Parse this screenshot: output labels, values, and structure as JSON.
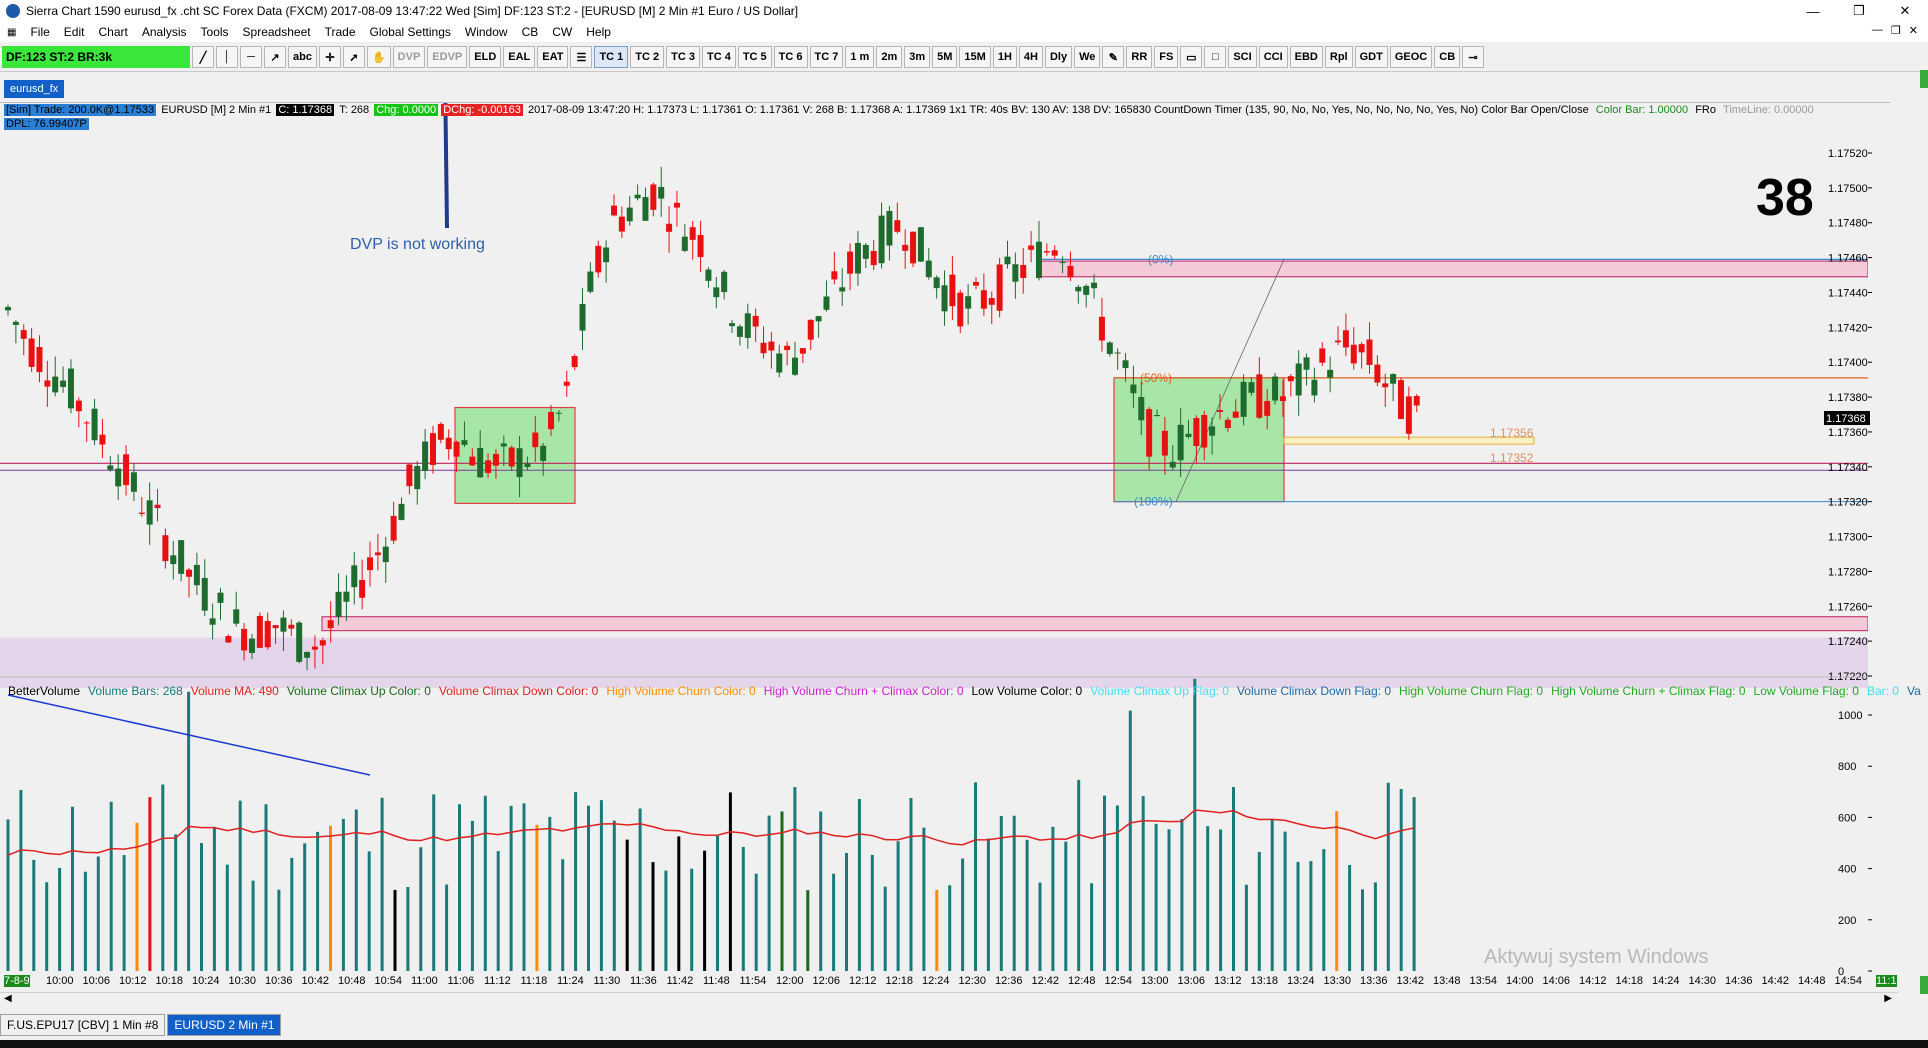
{
  "window": {
    "title": "Sierra Chart 1590 eurusd_fx .cht  SC Forex Data (FXCM) 2017-08-09 13:47:22 Wed [Sim]  DF:123  ST:2 - [EURUSD [M]  2 Min  #1  Euro / US Dollar]",
    "min": "—",
    "restore": "❐",
    "close": "✕"
  },
  "menu": [
    "File",
    "Edit",
    "Chart",
    "Analysis",
    "Tools",
    "Spreadsheet",
    "Trade",
    "Global Settings",
    "Window",
    "CB",
    "CW",
    "Help"
  ],
  "mdi_controls": [
    "—",
    "❐",
    "✕"
  ],
  "toolbar": {
    "status": "DF:123  ST:2  BR:3k",
    "buttons": [
      "DVP",
      "EDVP",
      "ELD",
      "EAL",
      "EAT",
      "TC 1",
      "TC 2",
      "TC 3",
      "TC 4",
      "TC 5",
      "TC 6",
      "TC 7",
      "1 m",
      "2m",
      "3m",
      "5M",
      "15M",
      "1H",
      "4H",
      "Dly",
      "We",
      "RR",
      "FS",
      "SCI",
      "CCI",
      "EBD",
      "Rpl",
      "GDT",
      "GEOC",
      "CB"
    ],
    "tool_icons": [
      "line-tool",
      "vertical-line-tool",
      "horizontal-line-tool",
      "ray-tool",
      "text-tool",
      "crosshair-tool",
      "pointer-tool",
      "hand-tool"
    ]
  },
  "chart_tab": "eurusd_fx",
  "infobar": {
    "sim": "[Sim]  Trade: 200.0K@1.17533",
    "symbol": "EURUSD [M]  2 Min  #1",
    "close": "C: 1.17368",
    "t": "T: 268",
    "chg": "Chg: 0.0000",
    "dchg": "DChg: -0.00163",
    "rest": "2017-08-09 13:47:20  H: 1.17373  L: 1.17361  O: 1.17361  V: 268  B: 1.17368  A: 1.17369  1x1  TR: 40s  BV: 130  AV: 138  DV: 165830  CountDown Timer   (135, 90, No, No, Yes, No, No, No, No, Yes, No)  Color Bar Open/Close",
    "colorbar": "Color Bar: 1.00000",
    "fro": "FRo",
    "timeline": "TimeLine: 0.00000",
    "dpl": "DPL: 76.99407P"
  },
  "annotation": "DVP is not working",
  "big_number": "38",
  "fib_labels": {
    "f0": "(0%)",
    "f50": "(50%)",
    "f100": "(100%)"
  },
  "level_labels": [
    "1.17356",
    "1.17352"
  ],
  "current_price": "1.17368",
  "price_axis": [
    "1.17520",
    "1.17500",
    "1.17480",
    "1.17460",
    "1.17440",
    "1.17420",
    "1.17400",
    "1.17380",
    "1.17360",
    "1.17340",
    "1.17320",
    "1.17300",
    "1.17280",
    "1.17260",
    "1.17240",
    "1.17220"
  ],
  "volume_axis": [
    "1000",
    "800",
    "600",
    "400",
    "200",
    "0"
  ],
  "volume_legend": [
    {
      "text": "BetterVolume",
      "color": "#000000"
    },
    {
      "text": "Volume Bars: 268",
      "color": "#1a7a7a"
    },
    {
      "text": "Volume MA: 490",
      "color": "#e02020"
    },
    {
      "text": "Volume Climax Up Color: 0",
      "color": "#1a6a1a"
    },
    {
      "text": "Volume Climax Down Color: 0",
      "color": "#e02020"
    },
    {
      "text": "High Volume Churn Color: 0",
      "color": "#ff8c00"
    },
    {
      "text": "High Volume Churn + Climax Color: 0",
      "color": "#cc22cc"
    },
    {
      "text": "Low Volume Color: 0",
      "color": "#000000"
    },
    {
      "text": "Volume Climax Up Flag: 0",
      "color": "#40e0f0"
    },
    {
      "text": "Volume Climax Down Flag: 0",
      "color": "#1a6aaa"
    },
    {
      "text": "High Volume Churn Flag: 0",
      "color": "#22aa22"
    },
    {
      "text": "High Volume Churn + Climax Flag: 0",
      "color": "#22aa22"
    },
    {
      "text": "Low Volume Flag: 0",
      "color": "#22aa22"
    },
    {
      "text": "Bar: 0",
      "color": "#40e0f0"
    },
    {
      "text": "Va",
      "color": "#1a6aaa"
    }
  ],
  "time_axis": [
    "7-8-9",
    "10:00",
    "10:06",
    "10:12",
    "10:18",
    "10:24",
    "10:30",
    "10:36",
    "10:42",
    "10:48",
    "10:54",
    "11:00",
    "11:06",
    "11:12",
    "11:18",
    "11:24",
    "11:30",
    "11:36",
    "11:42",
    "11:48",
    "11:54",
    "12:00",
    "12:06",
    "12:12",
    "12:18",
    "12:24",
    "12:30",
    "12:36",
    "12:42",
    "12:48",
    "12:54",
    "13:00",
    "13:06",
    "13:12",
    "13:18",
    "13:24",
    "13:30",
    "13:36",
    "13:42",
    "13:48",
    "13:54",
    "14:00",
    "14:06",
    "14:12",
    "14:18",
    "14:24",
    "14:30",
    "14:36",
    "14:42",
    "14:48",
    "14:54"
  ],
  "time_end_badge": "11:1",
  "watermark": "Aktywuj system Windows",
  "bottom_tabs": [
    {
      "label": "F.US.EPU17 [CBV]  1 Min  #8",
      "active": false
    },
    {
      "label": "EURUSD  2 Min  #1",
      "active": true
    }
  ],
  "colors": {
    "up": "#1e6b2e",
    "down": "#e81010",
    "volume": "#1a7a7a",
    "ma": "#e02020",
    "zone_green": "#a8e6a8",
    "zone_pink": "#f4c9d8"
  }
}
